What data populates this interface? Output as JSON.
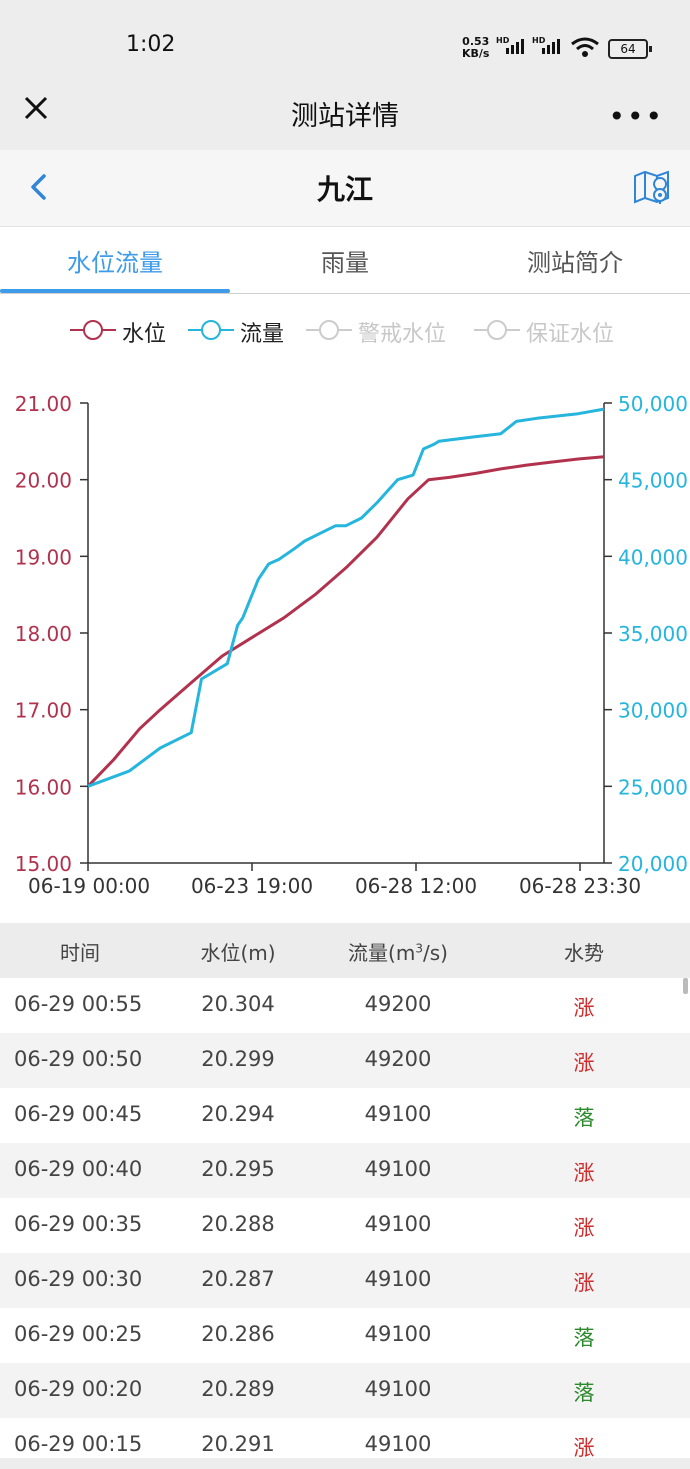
{
  "status": {
    "time": "1:02",
    "speed_value": "0.53",
    "speed_unit": "KB/s",
    "hd1": "HD",
    "hd2": "HD",
    "battery": "64"
  },
  "header": {
    "title": "测站详情",
    "more": "•••"
  },
  "nav": {
    "station": "九江"
  },
  "tabs": [
    {
      "label": "水位流量",
      "active": true
    },
    {
      "label": "雨量",
      "active": false
    },
    {
      "label": "测站简介",
      "active": false
    }
  ],
  "legend": [
    {
      "label": "水位",
      "color": "#b2324e",
      "enabled": true
    },
    {
      "label": "流量",
      "color": "#25b5dd",
      "enabled": true
    },
    {
      "label": "警戒水位",
      "color": "#cccccc",
      "enabled": false
    },
    {
      "label": "保证水位",
      "color": "#cccccc",
      "enabled": false
    }
  ],
  "chart_data": {
    "type": "line",
    "x_ticks": [
      "06-19 00:00",
      "06-23 19:00",
      "06-28 12:00",
      "06-28 23:30"
    ],
    "y_left": {
      "range": [
        15,
        21
      ],
      "ticks": [
        "15.00",
        "16.00",
        "17.00",
        "18.00",
        "19.00",
        "20.00",
        "21.00"
      ],
      "color": "#b2324e"
    },
    "y_right": {
      "range": [
        20000,
        50000
      ],
      "ticks": [
        "20,000",
        "25,000",
        "30,000",
        "35,000",
        "40,000",
        "45,000",
        "50,000"
      ],
      "color": "#25b5dd"
    },
    "series": [
      {
        "name": "水位",
        "axis": "left",
        "color": "#b2324e",
        "x": [
          0,
          0.05,
          0.1,
          0.14,
          0.2,
          0.26,
          0.32,
          0.38,
          0.44,
          0.5,
          0.56,
          0.62,
          0.66,
          0.7,
          0.75,
          0.8,
          0.85,
          0.9,
          0.95,
          1.0
        ],
        "y": [
          16.0,
          16.35,
          16.75,
          17.0,
          17.35,
          17.7,
          17.95,
          18.2,
          18.5,
          18.85,
          19.25,
          19.75,
          20.0,
          20.03,
          20.08,
          20.14,
          20.19,
          20.23,
          20.27,
          20.3
        ]
      },
      {
        "name": "流量",
        "axis": "right",
        "color": "#25b5dd",
        "x": [
          0,
          0.08,
          0.14,
          0.2,
          0.22,
          0.27,
          0.29,
          0.3,
          0.33,
          0.35,
          0.37,
          0.4,
          0.42,
          0.45,
          0.48,
          0.5,
          0.53,
          0.56,
          0.6,
          0.63,
          0.65,
          0.67,
          0.68,
          0.75,
          0.8,
          0.83,
          0.87,
          0.95,
          1.0
        ],
        "y": [
          25000,
          26000,
          27500,
          28500,
          32000,
          33000,
          35500,
          36000,
          38500,
          39500,
          39800,
          40500,
          41000,
          41500,
          42000,
          42000,
          42500,
          43500,
          45000,
          45300,
          47000,
          47300,
          47500,
          47800,
          48000,
          48800,
          49000,
          49300,
          49600
        ]
      }
    ]
  },
  "table": {
    "headers": {
      "time": "时间",
      "level": "水位(m)",
      "flow_prefix": "流量(m",
      "flow_sup": "3",
      "flow_suffix": "/s)",
      "trend": "水势"
    },
    "rows": [
      {
        "time": "06-29 00:55",
        "level": "20.304",
        "flow": "49200",
        "trend": "涨",
        "dir": "up"
      },
      {
        "time": "06-29 00:50",
        "level": "20.299",
        "flow": "49200",
        "trend": "涨",
        "dir": "up"
      },
      {
        "time": "06-29 00:45",
        "level": "20.294",
        "flow": "49100",
        "trend": "落",
        "dir": "down"
      },
      {
        "time": "06-29 00:40",
        "level": "20.295",
        "flow": "49100",
        "trend": "涨",
        "dir": "up"
      },
      {
        "time": "06-29 00:35",
        "level": "20.288",
        "flow": "49100",
        "trend": "涨",
        "dir": "up"
      },
      {
        "time": "06-29 00:30",
        "level": "20.287",
        "flow": "49100",
        "trend": "涨",
        "dir": "up"
      },
      {
        "time": "06-29 00:25",
        "level": "20.286",
        "flow": "49100",
        "trend": "落",
        "dir": "down"
      },
      {
        "time": "06-29 00:20",
        "level": "20.289",
        "flow": "49100",
        "trend": "落",
        "dir": "down"
      },
      {
        "time": "06-29 00:15",
        "level": "20.291",
        "flow": "49100",
        "trend": "涨",
        "dir": "up"
      }
    ]
  }
}
